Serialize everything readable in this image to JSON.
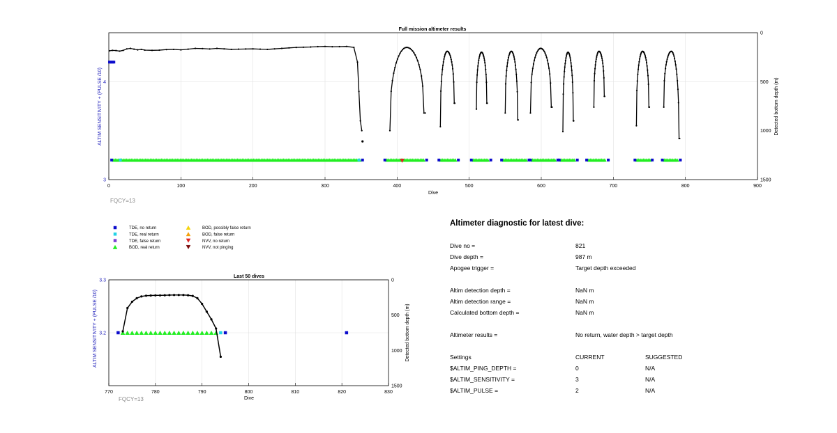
{
  "chart_data": [
    {
      "type": "scatter",
      "title": "Full mission altimeter results",
      "xlabel": "Dive",
      "ylabel_left": "ALTIM SENSITIVITY + (PULSE /10)",
      "ylabel_right": "Detected bottom depth (m)",
      "xlim": [
        0,
        900
      ],
      "ylim_left": [
        3,
        4.5
      ],
      "ylim_right": [
        1500,
        0
      ],
      "xticks": [
        "0",
        "100",
        "200",
        "300",
        "400",
        "500",
        "600",
        "700",
        "800",
        "900"
      ],
      "yticks_left": [
        "3",
        "4"
      ],
      "yticks_right": [
        "0",
        "500",
        "1000",
        "1500"
      ],
      "grid": true,
      "note": "FQCY=13",
      "blue_start": {
        "x": [
          1,
          7
        ],
        "y": 4.2
      },
      "marker_segments": [
        {
          "from": 4,
          "to": 352,
          "y": 3.2
        },
        {
          "from": 383,
          "to": 441,
          "y": 3.2
        },
        {
          "from": 458,
          "to": 485,
          "y": 3.2
        },
        {
          "from": 503,
          "to": 530,
          "y": 3.2
        },
        {
          "from": 545,
          "to": 583,
          "y": 3.2
        },
        {
          "from": 585,
          "to": 623,
          "y": 3.2
        },
        {
          "from": 625,
          "to": 650,
          "y": 3.2
        },
        {
          "from": 663,
          "to": 693,
          "y": 3.2
        },
        {
          "from": 730,
          "to": 754,
          "y": 3.2
        },
        {
          "from": 768,
          "to": 793,
          "y": 3.2
        }
      ],
      "nvv_marker": {
        "x": 407,
        "y": 3.2
      },
      "depth_line": {
        "x": [
          1,
          5,
          10,
          15,
          20,
          25,
          30,
          35,
          40,
          45,
          50,
          60,
          70,
          80,
          90,
          100,
          110,
          120,
          130,
          140,
          150,
          160,
          170,
          180,
          190,
          200,
          210,
          220,
          230,
          240,
          250,
          260,
          270,
          280,
          290,
          300,
          310,
          320,
          330,
          340,
          345,
          347,
          349,
          351
        ],
        "y": [
          185,
          180,
          182,
          188,
          180,
          165,
          160,
          168,
          175,
          170,
          178,
          180,
          178,
          172,
          170,
          175,
          168,
          160,
          162,
          166,
          160,
          165,
          170,
          168,
          166,
          165,
          168,
          170,
          165,
          160,
          155,
          150,
          148,
          146,
          142,
          140,
          143,
          142,
          140,
          150,
          300,
          600,
          900,
          1000
        ]
      },
      "depth_point": {
        "x": 352,
        "y": 1110
      },
      "dive_curves": [
        {
          "x0": 390,
          "x1": 439,
          "bottom": 1000,
          "top": 150,
          "end": 820
        },
        {
          "x0": 460,
          "x1": 480,
          "bottom": 960,
          "top": 190,
          "end": 720
        },
        {
          "x0": 510,
          "x1": 525,
          "bottom": 780,
          "top": 200,
          "end": 720
        },
        {
          "x0": 550,
          "x1": 568,
          "bottom": 820,
          "top": 190,
          "end": 890
        },
        {
          "x0": 585,
          "x1": 615,
          "bottom": 820,
          "top": 160,
          "end": 760
        },
        {
          "x0": 630,
          "x1": 645,
          "bottom": 1010,
          "top": 200,
          "end": 900
        },
        {
          "x0": 673,
          "x1": 688,
          "bottom": 760,
          "top": 190,
          "end": 650
        },
        {
          "x0": 732,
          "x1": 750,
          "bottom": 950,
          "top": 190,
          "end": 760
        },
        {
          "x0": 770,
          "x1": 792,
          "bottom": 760,
          "top": 190,
          "end": 1080
        }
      ]
    },
    {
      "type": "scatter",
      "title": "Last 50 dives",
      "xlabel": "Dive",
      "ylabel_left": "ALTIM SENSITIVITY + (PULSE /10)",
      "ylabel_right": "Detected bottom depth (m)",
      "xlim": [
        770,
        830
      ],
      "ylim_left": [
        3.1,
        3.3
      ],
      "ylim_right": [
        1500,
        0
      ],
      "xticks": [
        "770",
        "780",
        "790",
        "800",
        "810",
        "820",
        "830"
      ],
      "yticks_left": [
        "3.2",
        "3.3"
      ],
      "yticks_right": [
        "0",
        "500",
        "1000",
        "1500"
      ],
      "grid": true,
      "note": "FQCY=13",
      "tde_no_return_x": [
        772,
        795,
        821
      ],
      "tde_real_return_x": [
        794
      ],
      "bod_real_return_x": [
        773,
        774,
        775,
        776,
        777,
        778,
        779,
        780,
        781,
        782,
        783,
        784,
        785,
        786,
        787,
        788,
        789,
        790,
        791,
        792,
        793
      ],
      "depth_line": {
        "x": [
          773,
          774,
          775,
          776,
          777,
          778,
          779,
          780,
          781,
          782,
          783,
          784,
          785,
          786,
          787,
          788,
          789,
          790,
          791,
          792,
          793,
          794
        ],
        "y": [
          730,
          400,
          310,
          260,
          235,
          225,
          222,
          220,
          220,
          218,
          216,
          215,
          215,
          215,
          218,
          228,
          260,
          340,
          450,
          560,
          690,
          1090
        ]
      }
    }
  ],
  "legend": [
    {
      "label": "TDE, no return",
      "marker": "square",
      "color": "#0b0bcc"
    },
    {
      "label": "TDE, real return",
      "marker": "square",
      "color": "#22d3e6"
    },
    {
      "label": "TDE, false return",
      "marker": "square",
      "color": "#7b3fd4"
    },
    {
      "label": "BOD, real return",
      "marker": "triangle-up",
      "color": "#22ee22"
    },
    {
      "label": "BOD, possibly false return",
      "marker": "triangle-up",
      "color": "#f5d40b"
    },
    {
      "label": "BOD, false return",
      "marker": "triangle-up",
      "color": "#f5a00b"
    },
    {
      "label": "NVV, no return",
      "marker": "triangle-down",
      "color": "#dd2222"
    },
    {
      "label": "NVV, not pinging",
      "marker": "triangle-down",
      "color": "#7a0a0a"
    }
  ],
  "diagnostic": {
    "title": "Altimeter diagnostic for latest dive:",
    "rows": [
      {
        "label": "Dive no =",
        "value": "821"
      },
      {
        "label": "Dive depth =",
        "value": "987 m"
      },
      {
        "label": "Apogee trigger =",
        "value": "Target depth exceeded"
      },
      {
        "label": "Altim detection depth =",
        "value": "NaN m"
      },
      {
        "label": "Altim detection range =",
        "value": "NaN m"
      },
      {
        "label": "Calculated bottom depth =",
        "value": "NaN m"
      },
      {
        "label": "Altimeter results =",
        "value": "No return, water depth > target depth"
      }
    ],
    "settings_header": {
      "label": "Settings",
      "current": "CURRENT",
      "suggested": "SUGGESTED"
    },
    "settings": [
      {
        "label": "$ALTIM_PING_DEPTH =",
        "current": "0",
        "suggested": "N/A"
      },
      {
        "label": "$ALTIM_SENSITIVITY =",
        "current": "3",
        "suggested": "N/A"
      },
      {
        "label": "$ALTIM_PULSE =",
        "current": "2",
        "suggested": "N/A"
      }
    ]
  },
  "colors": {
    "axis_left_label": "#2222bb",
    "tde_no_return": "#0b0bcc",
    "tde_real_return": "#22d3e6",
    "bod_real_return": "#22ee22",
    "nvv_no_return": "#dd2222",
    "depth_line": "#000000",
    "grid": "#e2e2e2",
    "note": "#8a8a8a"
  }
}
